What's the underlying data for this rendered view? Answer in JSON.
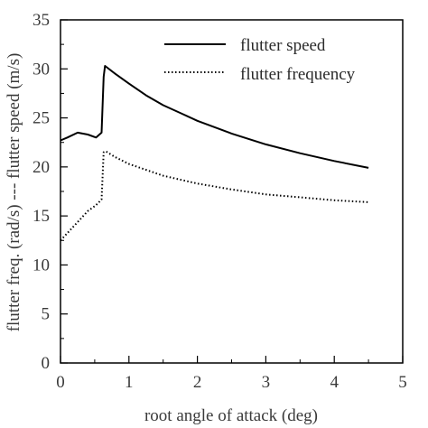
{
  "chart_data": {
    "type": "line",
    "title": "",
    "xlabel": "root angle of attack (deg)",
    "ylabel": "flutter freq. (rad/s) --- flutter speed (m/s)",
    "xlim": [
      0,
      5
    ],
    "ylim": [
      0,
      35
    ],
    "xticks": [
      "0",
      "1",
      "2",
      "3",
      "4",
      "5"
    ],
    "yticks": [
      "0",
      "5",
      "10",
      "15",
      "20",
      "25",
      "30",
      "35"
    ],
    "grid": false,
    "legend_position": "top-right",
    "series": [
      {
        "name": "flutter speed",
        "style": "solid",
        "color": "#000000",
        "x": [
          0,
          0.1,
          0.25,
          0.4,
          0.52,
          0.6,
          0.63,
          0.65,
          0.8,
          1.0,
          1.25,
          1.5,
          1.75,
          2.0,
          2.5,
          3.0,
          3.5,
          4.0,
          4.5
        ],
        "y": [
          22.7,
          23.0,
          23.5,
          23.3,
          23.0,
          23.5,
          29.2,
          30.3,
          29.5,
          28.5,
          27.3,
          26.3,
          25.5,
          24.7,
          23.4,
          22.3,
          21.4,
          20.6,
          19.9
        ]
      },
      {
        "name": "flutter frequency",
        "style": "dotted",
        "color": "#000000",
        "x": [
          0,
          0.2,
          0.4,
          0.5,
          0.55,
          0.6,
          0.63,
          0.66,
          0.8,
          1.0,
          1.5,
          2.0,
          2.5,
          3.0,
          3.5,
          4.0,
          4.5
        ],
        "y": [
          12.5,
          14.0,
          15.5,
          16.0,
          16.3,
          16.7,
          21.5,
          21.6,
          21.0,
          20.3,
          19.1,
          18.3,
          17.7,
          17.2,
          16.9,
          16.6,
          16.4
        ]
      }
    ]
  }
}
